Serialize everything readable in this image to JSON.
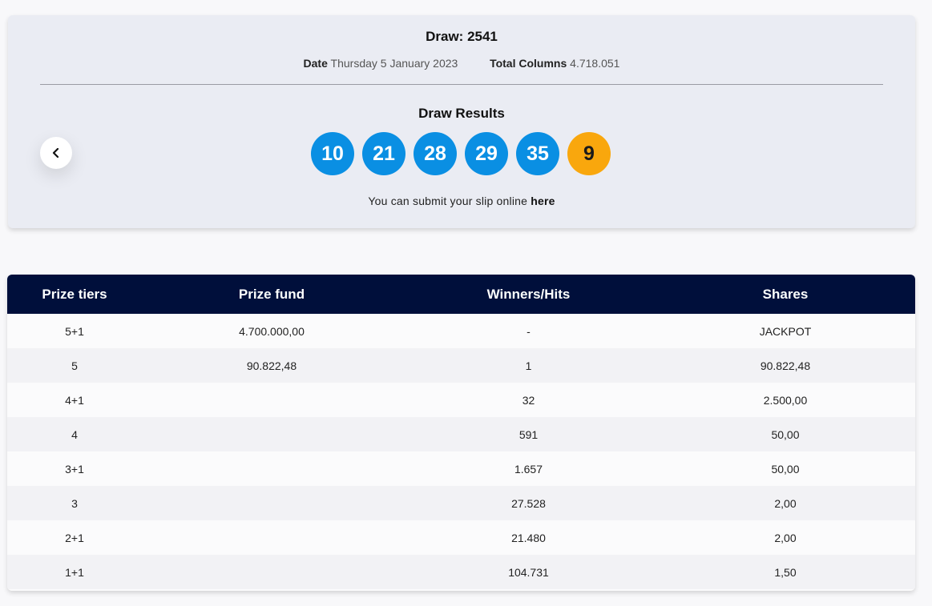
{
  "draw": {
    "title": "Draw: 2541",
    "date_label": "Date",
    "date_value": "Thursday 5 January 2023",
    "columns_label": "Total Columns",
    "columns_value": "4.718.051",
    "results_title": "Draw Results",
    "numbers": [
      "10",
      "21",
      "28",
      "29",
      "35"
    ],
    "bonus": "9",
    "slip_text": "You can submit your slip online ",
    "slip_link": "here",
    "colors": {
      "main_ball": "#0a8fe3",
      "bonus_ball": "#f9a70d",
      "header": "#000f3b"
    }
  },
  "prev_icon": "chevron-left-icon",
  "table": {
    "headers": [
      "Prize tiers",
      "Prize fund",
      "Winners/Hits",
      "Shares"
    ],
    "rows": [
      {
        "tier": "5+1",
        "fund": "4.700.000,00",
        "winners": "-",
        "shares": "JACKPOT"
      },
      {
        "tier": "5",
        "fund": "90.822,48",
        "winners": "1",
        "shares": "90.822,48"
      },
      {
        "tier": "4+1",
        "fund": "",
        "winners": "32",
        "shares": "2.500,00"
      },
      {
        "tier": "4",
        "fund": "",
        "winners": "591",
        "shares": "50,00"
      },
      {
        "tier": "3+1",
        "fund": "",
        "winners": "1.657",
        "shares": "50,00"
      },
      {
        "tier": "3",
        "fund": "",
        "winners": "27.528",
        "shares": "2,00"
      },
      {
        "tier": "2+1",
        "fund": "",
        "winners": "21.480",
        "shares": "2,00"
      },
      {
        "tier": "1+1",
        "fund": "",
        "winners": "104.731",
        "shares": "1,50"
      }
    ]
  }
}
